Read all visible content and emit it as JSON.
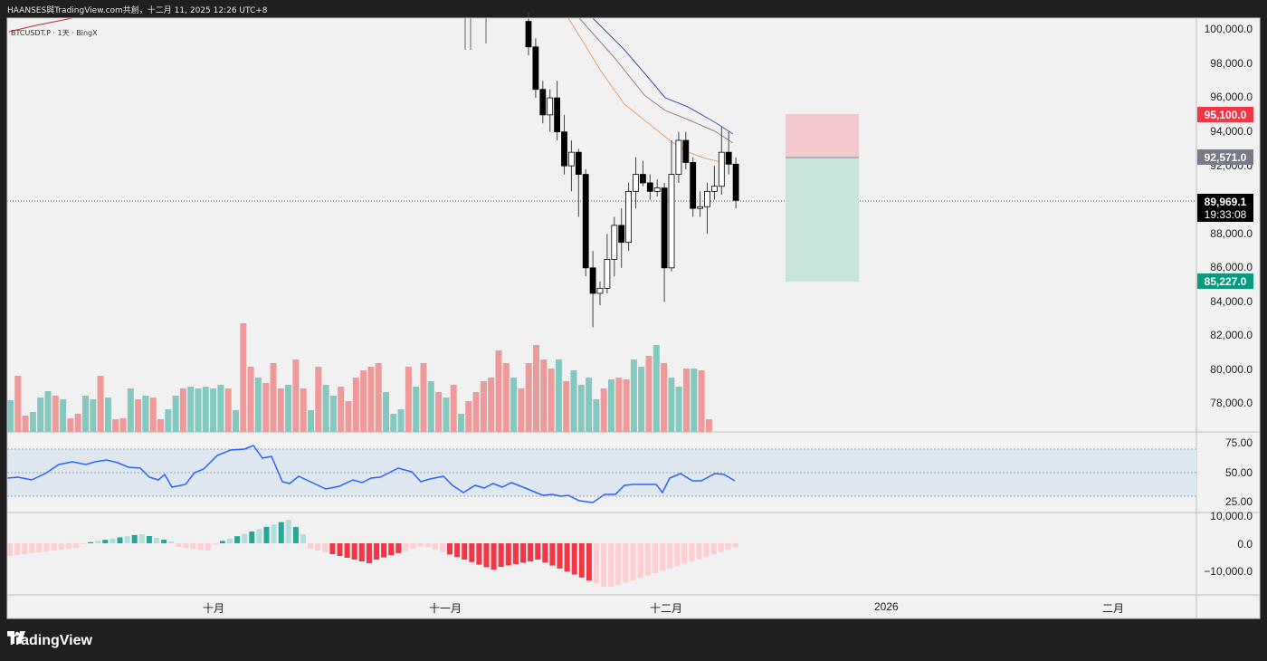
{
  "header": {
    "caption": "HAANSES與TradingView.com共創，十二月 11, 2025 12:26 UTC+8"
  },
  "symbol": {
    "label": "BTCUSDT.P · 1天 · BingX"
  },
  "footer": {
    "brand": "TradingView"
  },
  "colors": {
    "up_candle": "#ffffff",
    "down_candle": "#000000",
    "vol_up": "#84c9bf",
    "vol_down": "#ef9a9a",
    "rsi_line": "#2962ff",
    "ema_short": "#e8a06a",
    "ema_mid": "#9c7f8a",
    "ema_long": "#3f51b5",
    "stop_zone": "#f3c9cf",
    "target_zone": "#c7e4dd",
    "stop_label": "#f23645",
    "target_label": "#089981",
    "entry_label": "#787b86"
  },
  "price_axis": {
    "ticks": [
      "100,000.0",
      "98,000.0",
      "96,000.0",
      "94,000.0",
      "92,000.0",
      "88,000.0",
      "86,000.0",
      "84,000.0",
      "82,000.0",
      "80,000.0",
      "78,000.0"
    ]
  },
  "rsi_axis": {
    "ticks": [
      "75.00",
      "50.00",
      "25.00"
    ]
  },
  "macd_axis": {
    "ticks": [
      "10,000.0",
      "0.0",
      "−10,000.0"
    ]
  },
  "time_axis": {
    "ticks": [
      "十月",
      "十一月",
      "十二月",
      "2026",
      "二月"
    ]
  },
  "price_labels": {
    "stop": "95,100.0",
    "entry": "92,571.0",
    "current": "89,969.1",
    "countdown": "19:33:08",
    "target": "85,227.0"
  },
  "chart_data": {
    "type": "candlestick",
    "ylim": [
      76500,
      101000
    ],
    "position": {
      "stop_loss": 95100.0,
      "entry": 92571.0,
      "take_profit": 85227.0
    },
    "last_price": 89969.1,
    "recent_candles": [
      {
        "o": 100500,
        "h": 101000,
        "l": 98500,
        "c": 99000
      },
      {
        "o": 99000,
        "h": 99500,
        "l": 96000,
        "c": 96500
      },
      {
        "o": 96500,
        "h": 97000,
        "l": 94500,
        "c": 95000
      },
      {
        "o": 95000,
        "h": 96500,
        "l": 94000,
        "c": 96000
      },
      {
        "o": 96000,
        "h": 97000,
        "l": 93500,
        "c": 94000
      },
      {
        "o": 94000,
        "h": 95000,
        "l": 91500,
        "c": 92000
      },
      {
        "o": 92000,
        "h": 93500,
        "l": 90500,
        "c": 92800
      },
      {
        "o": 92800,
        "h": 93000,
        "l": 89000,
        "c": 91500
      },
      {
        "o": 91500,
        "h": 91800,
        "l": 85500,
        "c": 86000
      },
      {
        "o": 86000,
        "h": 87000,
        "l": 82500,
        "c": 84500
      },
      {
        "o": 84500,
        "h": 85200,
        "l": 83800,
        "c": 84800
      },
      {
        "o": 84800,
        "h": 88000,
        "l": 84500,
        "c": 86500
      },
      {
        "o": 86500,
        "h": 89000,
        "l": 85500,
        "c": 88500
      },
      {
        "o": 88500,
        "h": 89500,
        "l": 86000,
        "c": 87500
      },
      {
        "o": 87500,
        "h": 91000,
        "l": 87000,
        "c": 90500
      },
      {
        "o": 90500,
        "h": 92500,
        "l": 89500,
        "c": 91500
      },
      {
        "o": 91500,
        "h": 92300,
        "l": 90800,
        "c": 91000
      },
      {
        "o": 91000,
        "h": 91500,
        "l": 90000,
        "c": 90500
      },
      {
        "o": 90500,
        "h": 91200,
        "l": 90200,
        "c": 90700
      },
      {
        "o": 90700,
        "h": 91000,
        "l": 84000,
        "c": 86000
      },
      {
        "o": 86000,
        "h": 93500,
        "l": 85800,
        "c": 91500
      },
      {
        "o": 91500,
        "h": 94000,
        "l": 91000,
        "c": 93500
      },
      {
        "o": 93500,
        "h": 94000,
        "l": 91800,
        "c": 92200
      },
      {
        "o": 92200,
        "h": 92500,
        "l": 89000,
        "c": 89500
      },
      {
        "o": 89500,
        "h": 90500,
        "l": 89000,
        "c": 89600
      },
      {
        "o": 89600,
        "h": 91000,
        "l": 88000,
        "c": 90500
      },
      {
        "o": 90500,
        "h": 92000,
        "l": 90000,
        "c": 90800
      },
      {
        "o": 90800,
        "h": 94300,
        "l": 90300,
        "c": 92800
      },
      {
        "o": 92800,
        "h": 94000,
        "l": 91500,
        "c": 92100
      },
      {
        "o": 92100,
        "h": 92500,
        "l": 89500,
        "c": 89969
      }
    ]
  }
}
